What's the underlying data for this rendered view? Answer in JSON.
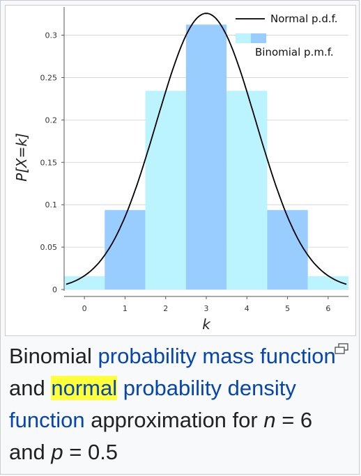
{
  "figure": {
    "caption": {
      "t1": "Binomial",
      "link1": "probability mass function",
      "t2": "and",
      "link2": "normal",
      "link3": "probability density function",
      "t3": "approximation for",
      "var_n": "n",
      "eq1": "= 6 and",
      "var_p": "p",
      "eq2": "= 0.5"
    },
    "magnify_icon": "magnify-clip-icon"
  },
  "chart_data": {
    "type": "bar",
    "xlabel": "k",
    "ylabel": "P[X=k]",
    "xlim": [
      -0.5,
      6.5
    ],
    "ylim": [
      0,
      0.33
    ],
    "x_ticks": [
      "0",
      "1",
      "2",
      "3",
      "4",
      "5",
      "6"
    ],
    "y_ticks": [
      "0",
      "0.05",
      "0.1",
      "0.15",
      "0.2",
      "0.25",
      "0.3"
    ],
    "legend_position": "top-right",
    "grid": true,
    "colors": {
      "binomial_light": "#bbf3ff",
      "binomial_dark": "#99ccff",
      "normal_curve": "#000000"
    },
    "series": [
      {
        "name": "Binomial p.m.f.",
        "kind": "bar",
        "categories": [
          0,
          1,
          2,
          3,
          4,
          5,
          6
        ],
        "values": [
          0.015625,
          0.09375,
          0.234375,
          0.3125,
          0.234375,
          0.09375,
          0.015625
        ]
      },
      {
        "name": "Normal p.d.f.",
        "kind": "curve",
        "mean": 3,
        "sd": 1.2247
      }
    ]
  }
}
